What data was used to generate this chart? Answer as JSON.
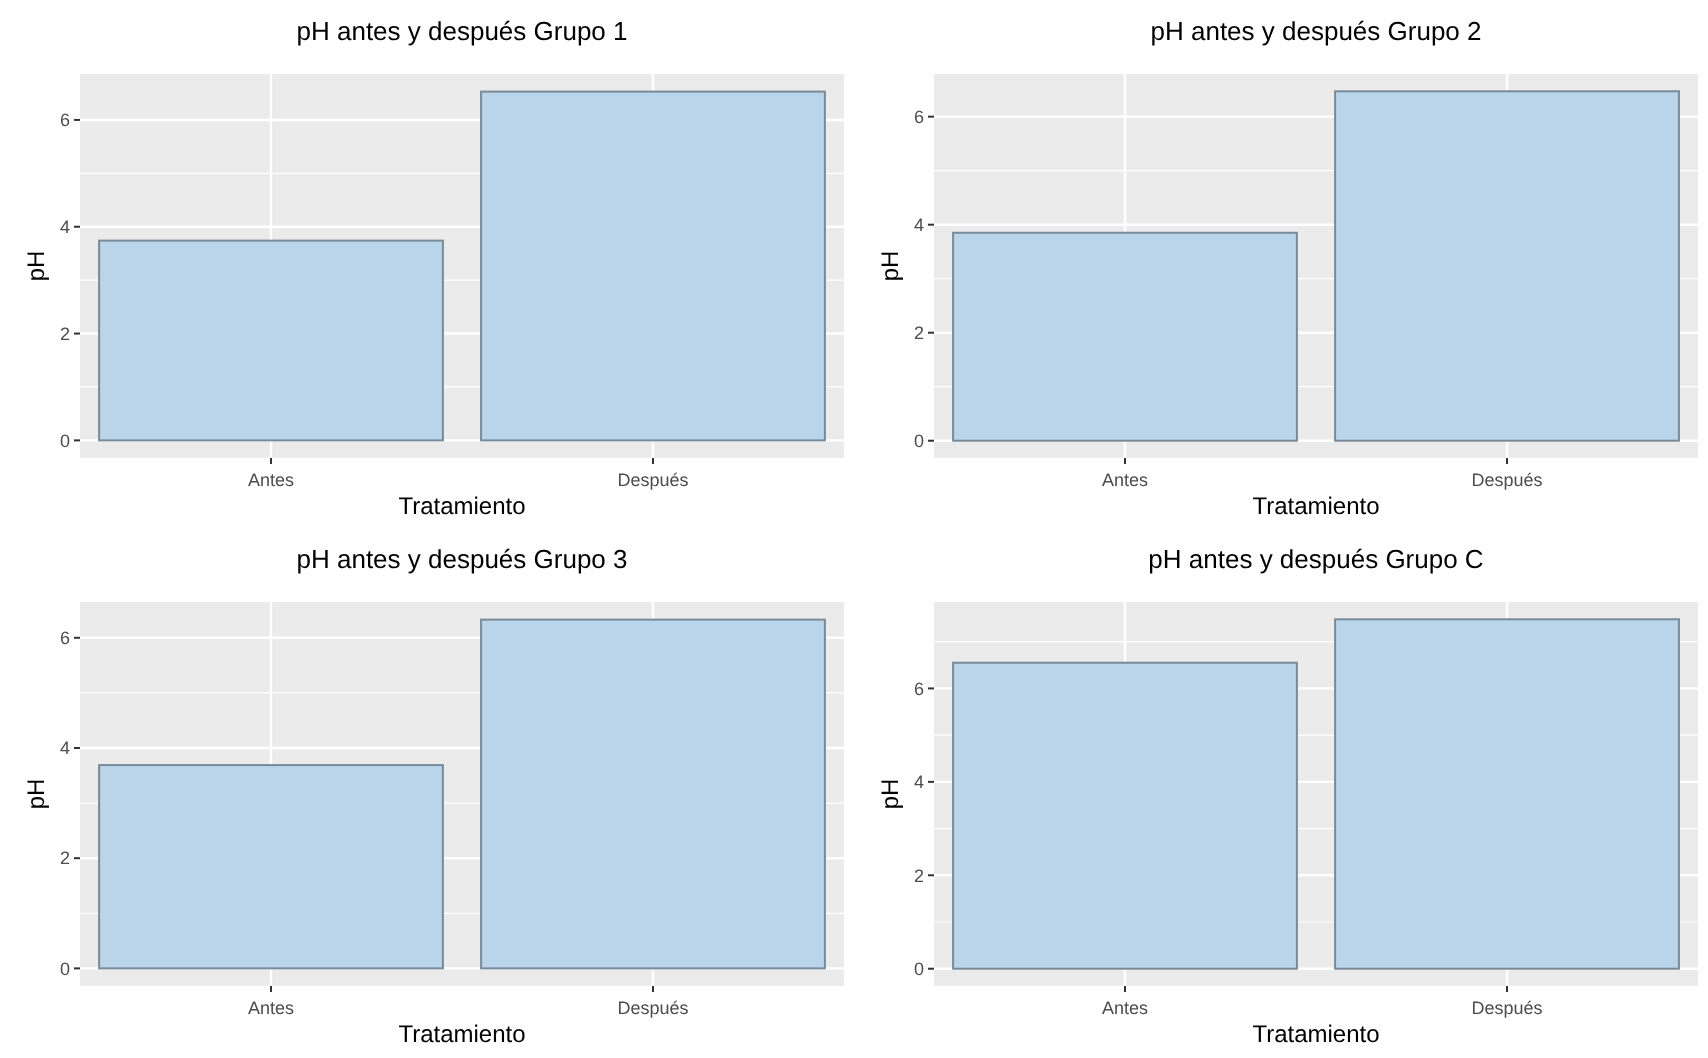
{
  "chart_data": [
    {
      "type": "bar",
      "title": "pH antes y después Grupo 1",
      "xlabel": "Tratamiento",
      "ylabel": "pH",
      "categories": [
        "Antes",
        "Después"
      ],
      "values": [
        3.74,
        6.53
      ],
      "color": "#bad4ea",
      "ylim": [
        -0.33,
        6.86
      ],
      "yticks": [
        0,
        2,
        4,
        6
      ],
      "grid": true
    },
    {
      "type": "bar",
      "title": "pH antes y después Grupo 2",
      "xlabel": "Tratamiento",
      "ylabel": "pH",
      "categories": [
        "Antes",
        "Después"
      ],
      "values": [
        3.85,
        6.47
      ],
      "color": "#bad4ea",
      "ylim": [
        -0.32,
        6.79
      ],
      "yticks": [
        0,
        2,
        4,
        6
      ],
      "grid": true
    },
    {
      "type": "bar",
      "title": "pH antes y después Grupo 3",
      "xlabel": "Tratamiento",
      "ylabel": "pH",
      "categories": [
        "Antes",
        "Después"
      ],
      "values": [
        3.69,
        6.33
      ],
      "color": "#bad4ea",
      "ylim": [
        -0.32,
        6.65
      ],
      "yticks": [
        0,
        2,
        4,
        6
      ],
      "grid": true
    },
    {
      "type": "bar",
      "title": "pH antes y después Grupo C",
      "xlabel": "Tratamiento",
      "ylabel": "pH",
      "categories": [
        "Antes",
        "Después"
      ],
      "values": [
        6.55,
        7.48
      ],
      "color": "#bad4ea",
      "ylim": [
        -0.37,
        7.85
      ],
      "yticks": [
        0,
        2,
        4,
        6
      ],
      "grid": true
    }
  ]
}
